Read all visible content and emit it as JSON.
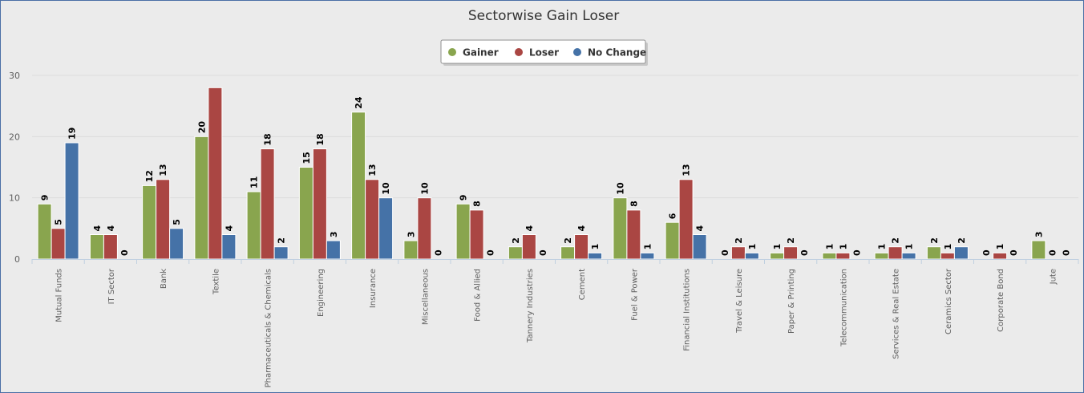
{
  "chart_data": {
    "type": "bar",
    "title": "Sectorwise Gain Loser",
    "xlabel": "",
    "ylabel": "",
    "ylim": [
      0,
      30
    ],
    "yticks": [
      0,
      10,
      20,
      30
    ],
    "grid": true,
    "legend_position": "top-center",
    "categories": [
      "Mutual Funds",
      "IT Sector",
      "Bank",
      "Textile",
      "Pharmaceuticals & Chemicals",
      "Engineering",
      "Insurance",
      "Miscellaneous",
      "Food & Allied",
      "Tannery Industries",
      "Cement",
      "Fuel & Power",
      "Financial Institutions",
      "Travel & Leisure",
      "Paper & Printing",
      "Telecommunication",
      "Services & Real Estate",
      "Ceramics Sector",
      "Corporate Bond",
      "Jute"
    ],
    "series": [
      {
        "name": "Gainer",
        "color": "#89a54e",
        "values": [
          9,
          4,
          12,
          20,
          11,
          15,
          24,
          3,
          9,
          2,
          2,
          10,
          6,
          0,
          1,
          1,
          1,
          2,
          0,
          3
        ]
      },
      {
        "name": "Loser",
        "color": "#aa4643",
        "values": [
          5,
          4,
          13,
          28,
          18,
          18,
          13,
          10,
          8,
          4,
          4,
          8,
          13,
          2,
          2,
          1,
          2,
          1,
          1,
          0
        ]
      },
      {
        "name": "No Change",
        "color": "#4572a7",
        "values": [
          19,
          0,
          5,
          4,
          2,
          3,
          10,
          0,
          0,
          0,
          1,
          1,
          4,
          1,
          0,
          0,
          1,
          2,
          0,
          0
        ]
      }
    ],
    "data_labels": [
      [
        "9",
        "5",
        "19"
      ],
      [
        "4",
        "4",
        "0"
      ],
      [
        "12",
        "13",
        "5"
      ],
      [
        "20",
        "",
        "4"
      ],
      [
        "11",
        "18",
        "2"
      ],
      [
        "15",
        "18",
        "3"
      ],
      [
        "24",
        "13",
        "10"
      ],
      [
        "3",
        "10",
        "0"
      ],
      [
        "9",
        "8",
        "0"
      ],
      [
        "2",
        "4",
        "0"
      ],
      [
        "2",
        "4",
        "1"
      ],
      [
        "10",
        "8",
        "1"
      ],
      [
        "6",
        "13",
        "4"
      ],
      [
        "0",
        "2",
        "1"
      ],
      [
        "1",
        "2",
        "0"
      ],
      [
        "1",
        "1",
        "0"
      ],
      [
        "1",
        "2",
        "1"
      ],
      [
        "2",
        "1",
        "2"
      ],
      [
        "0",
        "1",
        "0"
      ],
      [
        "3",
        "0",
        "0"
      ]
    ]
  }
}
